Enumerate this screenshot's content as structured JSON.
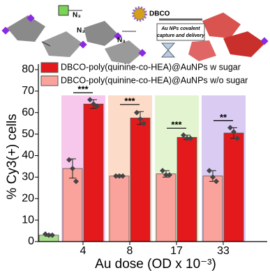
{
  "illustration": {
    "labels": [
      "N₃",
      "N₃",
      "N₃",
      "DBCO",
      "Au NPs covalent",
      "capture and delivery"
    ]
  },
  "chart_data": {
    "type": "bar",
    "xlabel": "Au dose (OD x 10⁻³)",
    "ylabel": "% Cy3(+) cells",
    "categories": [
      null,
      "4",
      "8",
      "17",
      "33"
    ],
    "band_colors": [
      null,
      "#f8c8ec",
      "#fcdcc8",
      "#e3f5d0",
      "#dacbf3"
    ],
    "significance": [
      null,
      "***",
      "***",
      "***",
      "**"
    ],
    "series": [
      {
        "name": "DBCO-poly(quinine-co-HEA)@AuNPs w sugar",
        "color": "#e3191c",
        "values": [
          null,
          64,
          57.5,
          48.5,
          50.5
        ],
        "errors": [
          null,
          2,
          3,
          1,
          2.5
        ],
        "points": [
          null,
          [
            66,
            64,
            63
          ],
          [
            60,
            57,
            55
          ],
          [
            49.5,
            48,
            48
          ],
          [
            53,
            51,
            48
          ]
        ]
      },
      {
        "name": "DBCO-poly(quinine-co-HEA)@AuNPs w/o sugar",
        "color": "#f9a39c",
        "bar_colors": [
          "#a9de8c",
          "#f9a39c",
          "#f9a39c",
          "#f9a39c",
          "#f9a39c"
        ],
        "values": [
          3,
          34,
          30.5,
          31.5,
          30.5
        ],
        "errors": [
          0.5,
          4.5,
          0.5,
          1.5,
          2.5
        ],
        "points": [
          [
            3.5,
            3,
            3
          ],
          [
            38,
            34,
            28
          ],
          [
            30.5,
            30.5,
            30.5
          ],
          [
            33,
            31,
            31
          ],
          [
            33,
            30,
            28
          ]
        ]
      }
    ],
    "ylim": [
      0,
      80
    ],
    "yticks": [
      0,
      10,
      20,
      30,
      40,
      50,
      60,
      70,
      80
    ],
    "legend": "top-left"
  }
}
